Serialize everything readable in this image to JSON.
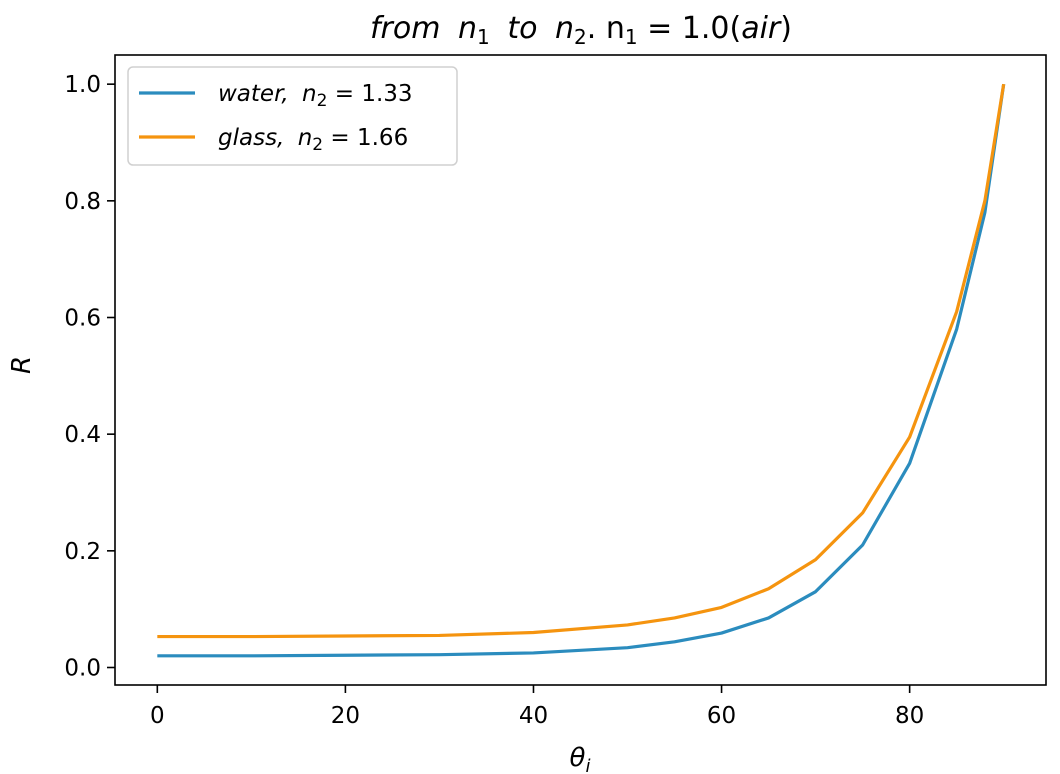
{
  "chart_data": {
    "type": "line",
    "title": {
      "from": "from",
      "n": "n",
      "sub1": "1",
      "to": "to",
      "sub2": "2",
      "eq": ". n",
      "eqsub": "1",
      "rest": " = 1.0(",
      "air": "air",
      "close": ")"
    },
    "xlabel": {
      "main": "θ",
      "sub": "i"
    },
    "ylabel": "R",
    "xlim": [
      -4.5,
      94.5
    ],
    "ylim": [
      -0.03,
      1.05
    ],
    "xticks": [
      0,
      20,
      40,
      60,
      80
    ],
    "xtick_labels": [
      "0",
      "20",
      "40",
      "60",
      "80"
    ],
    "yticks": [
      0.0,
      0.2,
      0.4,
      0.6,
      0.8,
      1.0
    ],
    "ytick_labels": [
      "0.0",
      "0.2",
      "0.4",
      "0.6",
      "0.8",
      "1.0"
    ],
    "legend_position": "top-left",
    "series": [
      {
        "name": "water",
        "legend": {
          "label": "water,",
          "var": "n",
          "sub": "2",
          "value": " = 1.33"
        },
        "n2": 1.33,
        "color": "#2b8cbe",
        "x": [
          0,
          10,
          20,
          30,
          40,
          50,
          55,
          60,
          65,
          70,
          75,
          80,
          85,
          88,
          90
        ],
        "y": [
          0.02,
          0.02,
          0.021,
          0.022,
          0.025,
          0.034,
          0.044,
          0.059,
          0.085,
          0.13,
          0.21,
          0.35,
          0.58,
          0.78,
          1.0
        ]
      },
      {
        "name": "glass",
        "legend": {
          "label": "glass,",
          "var": "n",
          "sub": "2",
          "value": " = 1.66"
        },
        "n2": 1.66,
        "color": "#f5940f",
        "x": [
          0,
          10,
          20,
          30,
          40,
          50,
          55,
          60,
          65,
          70,
          75,
          80,
          85,
          88,
          90
        ],
        "y": [
          0.053,
          0.053,
          0.054,
          0.055,
          0.06,
          0.073,
          0.085,
          0.103,
          0.135,
          0.185,
          0.265,
          0.395,
          0.61,
          0.8,
          1.0
        ]
      }
    ]
  }
}
